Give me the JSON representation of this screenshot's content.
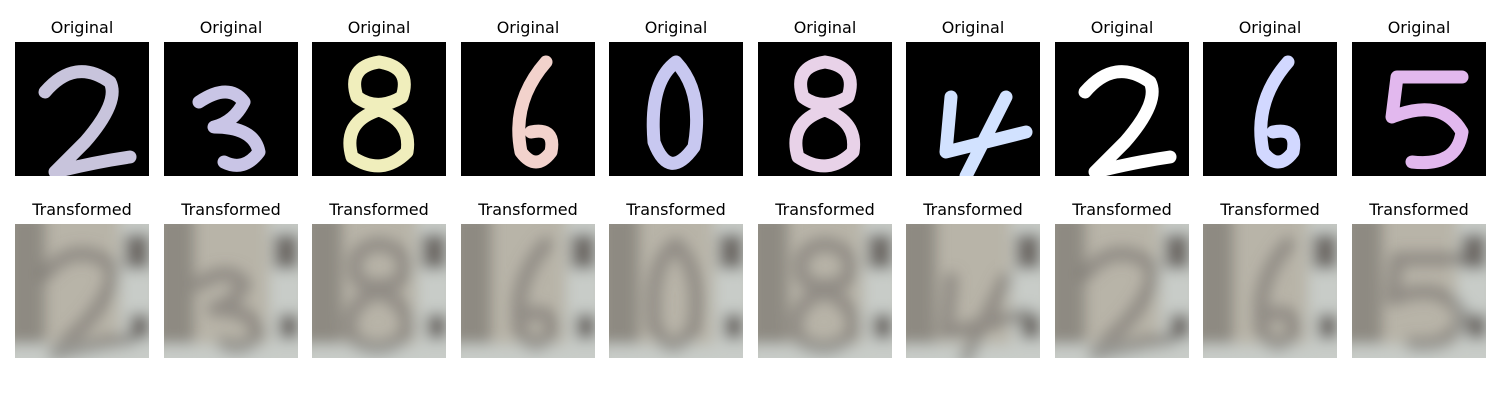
{
  "panels": [
    {
      "digit": "2",
      "digit_color": "#c8c4dc",
      "original_title": "Original",
      "transformed_title": "Transformed"
    },
    {
      "digit": "3",
      "digit_color": "#c9c5e6",
      "original_title": "Original",
      "transformed_title": "Transformed"
    },
    {
      "digit": "8",
      "digit_color": "#f0eebc",
      "original_title": "Original",
      "transformed_title": "Transformed"
    },
    {
      "digit": "6",
      "digit_color": "#f2d2cc",
      "original_title": "Original",
      "transformed_title": "Transformed"
    },
    {
      "digit": "0",
      "digit_color": "#c8c8f0",
      "original_title": "Original",
      "transformed_title": "Transformed"
    },
    {
      "digit": "8",
      "digit_color": "#e8d2e8",
      "original_title": "Original",
      "transformed_title": "Transformed"
    },
    {
      "digit": "4",
      "digit_color": "#d2e2ff",
      "original_title": "Original",
      "transformed_title": "Transformed"
    },
    {
      "digit": "2",
      "digit_color": "#ffffff",
      "original_title": "Original",
      "transformed_title": "Transformed"
    },
    {
      "digit": "6",
      "digit_color": "#d2d8ff",
      "original_title": "Original",
      "transformed_title": "Transformed"
    },
    {
      "digit": "5",
      "digit_color": "#e2b8ee",
      "original_title": "Original",
      "transformed_title": "Transformed"
    }
  ],
  "colors": {
    "background": "#ffffff",
    "original_background": "#000000",
    "transformed_palette": [
      "#b8b4a8",
      "#8e8a82",
      "#6e6a66",
      "#c8ccc8"
    ]
  }
}
